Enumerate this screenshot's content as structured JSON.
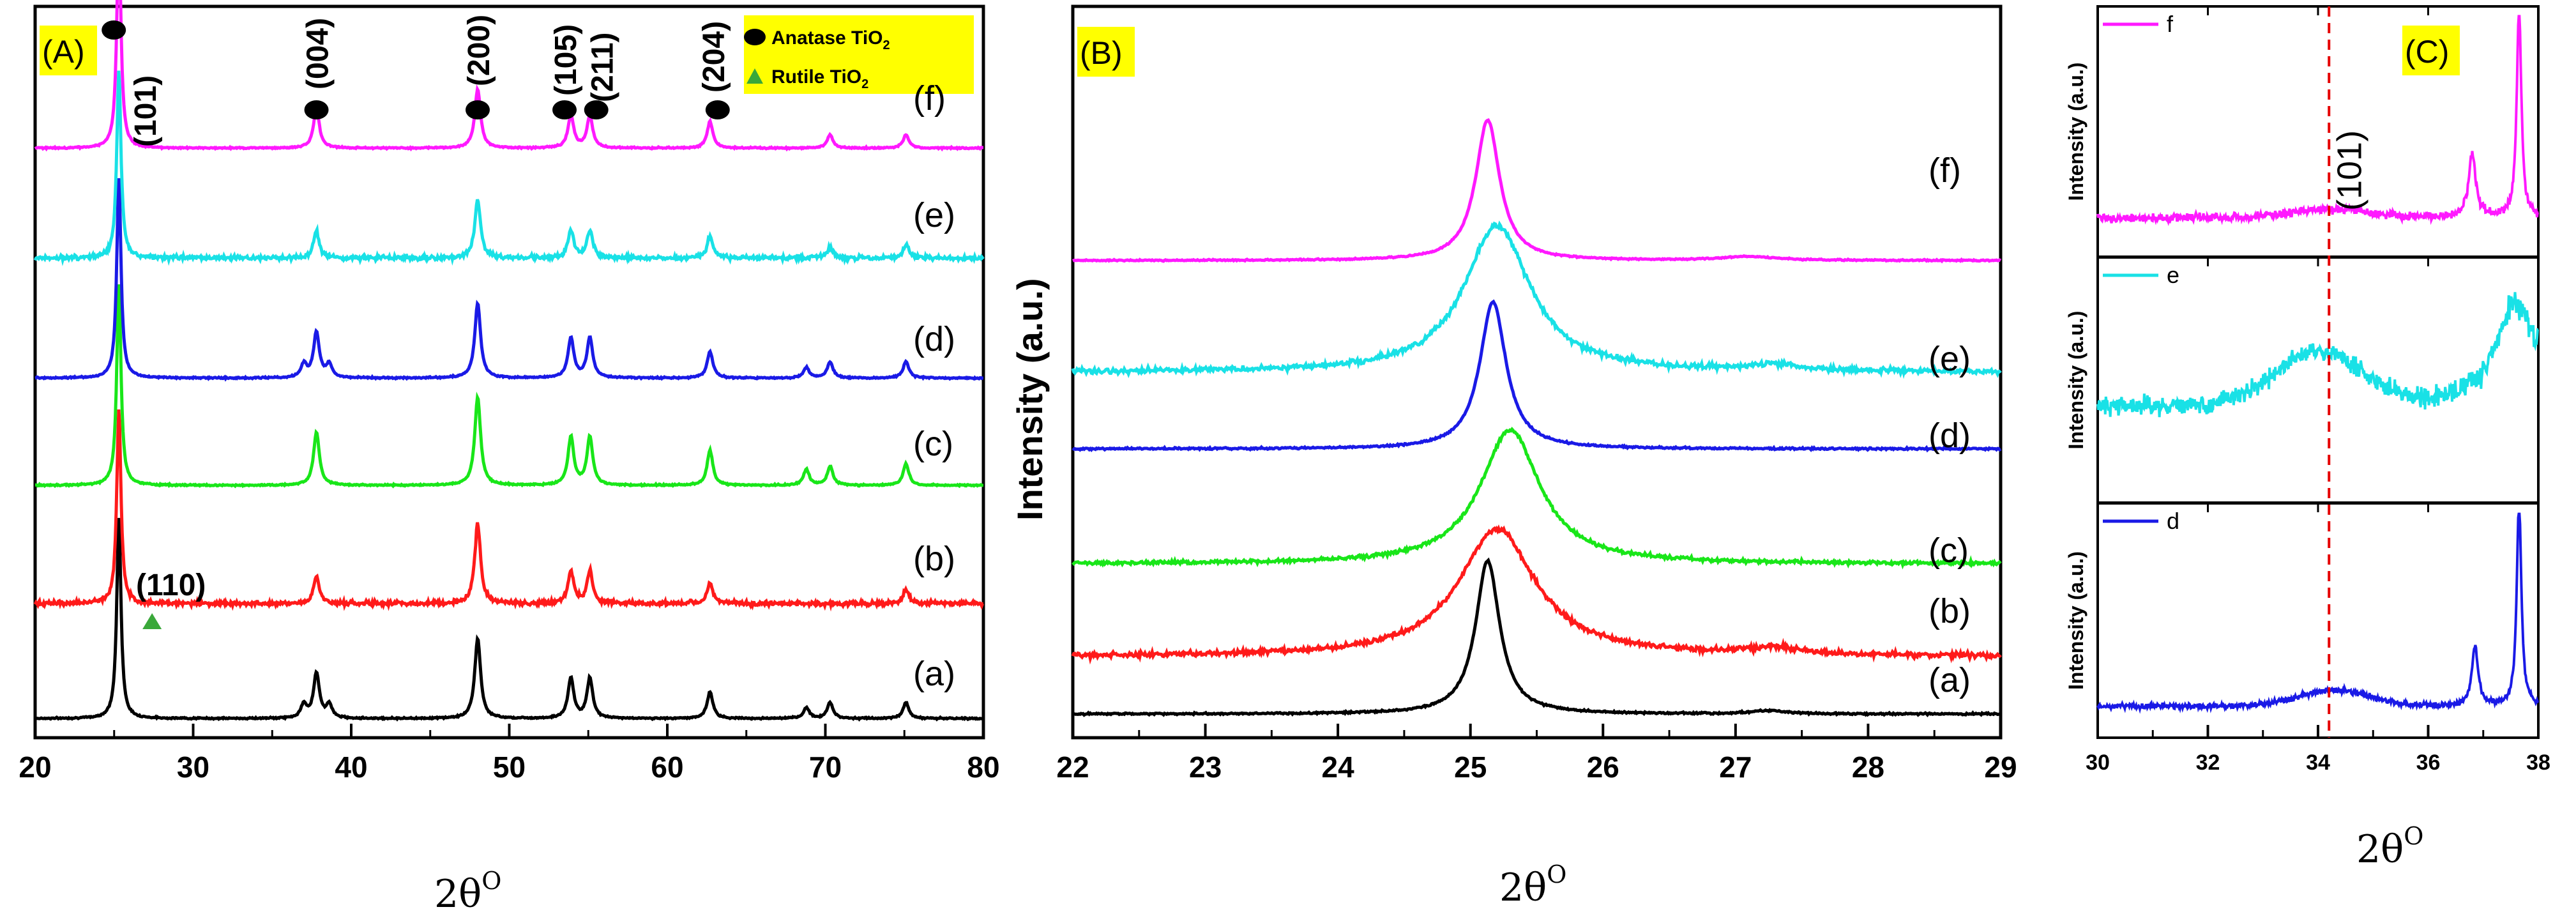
{
  "colors": {
    "a": "#000000",
    "b": "#ff1a1a",
    "c": "#19e619",
    "d": "#1a1ae6",
    "e": "#19e1e6",
    "f": "#ff19ff",
    "panel_tag_bg": "#ffff00",
    "rutile": "#3aa83a",
    "ref_line": "#e60000"
  },
  "chart_data": [
    {
      "type": "line",
      "panel": "(A)",
      "xlabel": "2θ",
      "xlabel_sup": "O",
      "ylabel": "",
      "xlim": [
        20,
        80
      ],
      "xticks": [
        "20",
        "30",
        "40",
        "50",
        "60",
        "70",
        "80"
      ],
      "series": [
        {
          "name": "(a)",
          "key": "a",
          "offset": 0.0,
          "peaks": [
            [
              25.3,
              0.75
            ],
            [
              37.0,
              0.05
            ],
            [
              37.8,
              0.17
            ],
            [
              38.6,
              0.05
            ],
            [
              48.0,
              0.3
            ],
            [
              53.9,
              0.15
            ],
            [
              55.1,
              0.15
            ],
            [
              62.7,
              0.1
            ],
            [
              68.8,
              0.04
            ],
            [
              70.3,
              0.06
            ],
            [
              75.1,
              0.06
            ]
          ]
        },
        {
          "name": "(b)",
          "key": "b",
          "offset": 0.9,
          "peaks": [
            [
              25.3,
              0.72
            ],
            [
              37.8,
              0.1
            ],
            [
              48.0,
              0.3
            ],
            [
              53.9,
              0.12
            ],
            [
              55.1,
              0.12
            ],
            [
              62.7,
              0.08
            ],
            [
              75.1,
              0.05
            ]
          ]
        },
        {
          "name": "(c)",
          "key": "c",
          "offset": 1.8,
          "peaks": [
            [
              25.3,
              0.75
            ],
            [
              37.8,
              0.2
            ],
            [
              48.0,
              0.33
            ],
            [
              53.9,
              0.18
            ],
            [
              55.1,
              0.18
            ],
            [
              62.7,
              0.13
            ],
            [
              68.8,
              0.06
            ],
            [
              70.3,
              0.07
            ],
            [
              75.1,
              0.08
            ]
          ]
        },
        {
          "name": "(d)",
          "key": "d",
          "offset": 2.7,
          "peaks": [
            [
              25.3,
              0.75
            ],
            [
              37.0,
              0.05
            ],
            [
              37.8,
              0.17
            ],
            [
              38.6,
              0.05
            ],
            [
              48.0,
              0.28
            ],
            [
              53.9,
              0.15
            ],
            [
              55.1,
              0.15
            ],
            [
              62.7,
              0.1
            ],
            [
              68.8,
              0.04
            ],
            [
              70.3,
              0.06
            ],
            [
              75.1,
              0.06
            ]
          ]
        },
        {
          "name": "(e)",
          "key": "e",
          "offset": 3.6,
          "peaks": [
            [
              25.3,
              0.7
            ],
            [
              37.8,
              0.1
            ],
            [
              48.0,
              0.22
            ],
            [
              53.9,
              0.1
            ],
            [
              55.1,
              0.1
            ],
            [
              62.7,
              0.08
            ],
            [
              70.3,
              0.04
            ],
            [
              75.1,
              0.05
            ]
          ]
        },
        {
          "name": "(f)",
          "key": "f",
          "offset": 4.5,
          "peaks": [
            [
              25.3,
              0.8
            ],
            [
              37.8,
              0.15
            ],
            [
              48.0,
              0.22
            ],
            [
              53.9,
              0.12
            ],
            [
              55.1,
              0.12
            ],
            [
              62.7,
              0.1
            ],
            [
              70.3,
              0.05
            ],
            [
              75.1,
              0.05
            ]
          ]
        }
      ],
      "anatase_peaks": [
        {
          "label": "(101)",
          "two_theta": 25.3
        },
        {
          "label": "(004)",
          "two_theta": 37.8
        },
        {
          "label": "(200)",
          "two_theta": 48.0
        },
        {
          "label": "(105)",
          "two_theta": 53.9
        },
        {
          "label": "(211)",
          "two_theta": 55.1
        },
        {
          "label": "(204)",
          "two_theta": 62.7
        }
      ],
      "rutile_peak": {
        "label": "(110)",
        "two_theta": 27.4
      },
      "legend": {
        "placement": "top-right",
        "anatase_text": "Anatase TiO",
        "rutile_text": "Rutile TiO",
        "subscript": "2"
      }
    },
    {
      "type": "line",
      "panel": "(B)",
      "xlabel": "2θ",
      "xlabel_sup": "O",
      "ylabel": "Intensity (a.u.)",
      "xlim": [
        22,
        29
      ],
      "xticks": [
        "22",
        "23",
        "24",
        "25",
        "26",
        "27",
        "28",
        "29"
      ],
      "series": [
        {
          "name": "(a)",
          "key": "a",
          "offset": 0.0,
          "center": 25.13,
          "width": 0.11,
          "height": 2.4,
          "noise": 0.02
        },
        {
          "name": "(b)",
          "key": "b",
          "offset": 0.9,
          "center": 25.2,
          "width": 0.35,
          "height": 2.0,
          "noise": 0.06
        },
        {
          "name": "(c)",
          "key": "c",
          "offset": 2.35,
          "center": 25.3,
          "width": 0.27,
          "height": 2.1,
          "noise": 0.04
        },
        {
          "name": "(d)",
          "key": "d",
          "offset": 4.15,
          "center": 25.17,
          "width": 0.12,
          "height": 2.3,
          "noise": 0.02
        },
        {
          "name": "(e)",
          "key": "e",
          "offset": 5.35,
          "center": 25.2,
          "width": 0.3,
          "height": 2.3,
          "noise": 0.06
        },
        {
          "name": "(f)",
          "key": "f",
          "offset": 7.1,
          "center": 25.13,
          "width": 0.11,
          "height": 2.2,
          "noise": 0.015
        }
      ]
    },
    {
      "type": "line",
      "panel": "(C)",
      "xlabel": "2θ",
      "xlabel_sup": "O",
      "xlim": [
        30,
        38
      ],
      "xticks": [
        "30",
        "32",
        "34",
        "36",
        "38"
      ],
      "reference_line": 34.2,
      "reference_label": "(101)",
      "subplots": [
        {
          "name": "f",
          "key": "f",
          "ylabel": "Intensity (a.u.)",
          "ylim": [
            0,
            1
          ],
          "base": 0.1,
          "noise": 0.03,
          "hump": [
            34.2,
            1.0,
            0.04
          ],
          "peaks": [
            [
              36.8,
              0.08,
              0.3
            ],
            [
              37.65,
              0.05,
              1.0
            ]
          ]
        },
        {
          "name": "e",
          "key": "e",
          "ylabel": "Intensity (a.u.)",
          "ylim": [
            0,
            1
          ],
          "base": 0.38,
          "noise": 0.07,
          "hump": [
            34.0,
            1.1,
            0.26
          ],
          "peaks": [
            [
              37.6,
              0.45,
              0.5
            ]
          ]
        },
        {
          "name": "d",
          "key": "d",
          "ylabel": "Intensity (a.u.)",
          "ylim": [
            0,
            1
          ],
          "base": 0.07,
          "noise": 0.02,
          "hump": [
            34.3,
            0.9,
            0.08
          ],
          "peaks": [
            [
              36.85,
              0.07,
              0.3
            ],
            [
              37.65,
              0.05,
              1.05
            ]
          ]
        }
      ]
    }
  ]
}
